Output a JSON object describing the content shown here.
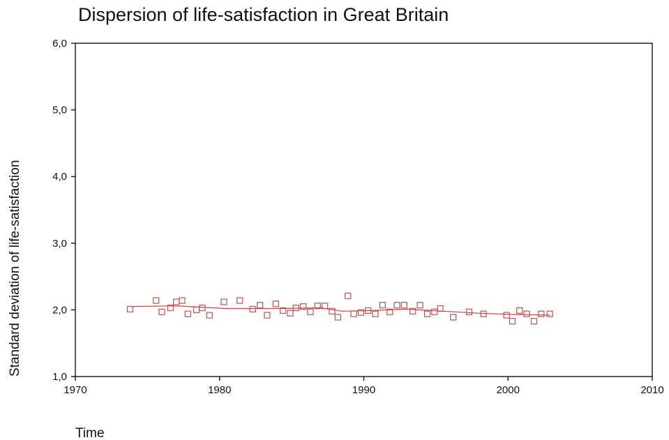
{
  "chart_data": {
    "type": "scatter",
    "title": "Dispersion of life-satisfaction in Great Britain",
    "xlabel": "Time",
    "ylabel": "Standard deviation of life-satisfaction",
    "xlim": [
      1970,
      2010
    ],
    "ylim": [
      1.0,
      6.0
    ],
    "xticks": [
      1970,
      1980,
      1990,
      2000,
      2010
    ],
    "yticks": [
      1.0,
      2.0,
      3.0,
      4.0,
      5.0,
      6.0
    ],
    "yticklabels": [
      "1,0",
      "2,0",
      "3,0",
      "4,0",
      "5,0",
      "6,0"
    ],
    "grid": false,
    "colors": {
      "points": "#c0504d",
      "trend": "#d04040",
      "axes": "#000000"
    },
    "points": [
      {
        "x": 1973.8,
        "y": 2.01
      },
      {
        "x": 1975.6,
        "y": 2.14
      },
      {
        "x": 1976.0,
        "y": 1.97
      },
      {
        "x": 1976.6,
        "y": 2.03
      },
      {
        "x": 1977.0,
        "y": 2.12
      },
      {
        "x": 1977.4,
        "y": 2.14
      },
      {
        "x": 1977.8,
        "y": 1.94
      },
      {
        "x": 1978.4,
        "y": 2.0
      },
      {
        "x": 1978.8,
        "y": 2.03
      },
      {
        "x": 1979.3,
        "y": 1.92
      },
      {
        "x": 1980.3,
        "y": 2.12
      },
      {
        "x": 1981.4,
        "y": 2.14
      },
      {
        "x": 1982.3,
        "y": 2.01
      },
      {
        "x": 1982.8,
        "y": 2.07
      },
      {
        "x": 1983.3,
        "y": 1.92
      },
      {
        "x": 1983.9,
        "y": 2.09
      },
      {
        "x": 1984.4,
        "y": 1.99
      },
      {
        "x": 1984.9,
        "y": 1.95
      },
      {
        "x": 1985.3,
        "y": 2.03
      },
      {
        "x": 1985.8,
        "y": 2.05
      },
      {
        "x": 1986.3,
        "y": 1.97
      },
      {
        "x": 1986.8,
        "y": 2.06
      },
      {
        "x": 1987.3,
        "y": 2.06
      },
      {
        "x": 1987.8,
        "y": 1.98
      },
      {
        "x": 1988.2,
        "y": 1.89
      },
      {
        "x": 1988.9,
        "y": 2.21
      },
      {
        "x": 1989.3,
        "y": 1.94
      },
      {
        "x": 1989.8,
        "y": 1.96
      },
      {
        "x": 1990.3,
        "y": 1.99
      },
      {
        "x": 1990.8,
        "y": 1.94
      },
      {
        "x": 1991.3,
        "y": 2.07
      },
      {
        "x": 1991.8,
        "y": 1.97
      },
      {
        "x": 1992.3,
        "y": 2.07
      },
      {
        "x": 1992.8,
        "y": 2.07
      },
      {
        "x": 1993.4,
        "y": 1.98
      },
      {
        "x": 1993.9,
        "y": 2.07
      },
      {
        "x": 1994.4,
        "y": 1.94
      },
      {
        "x": 1994.9,
        "y": 1.97
      },
      {
        "x": 1995.3,
        "y": 2.02
      },
      {
        "x": 1996.2,
        "y": 1.89
      },
      {
        "x": 1997.3,
        "y": 1.97
      },
      {
        "x": 1998.3,
        "y": 1.94
      },
      {
        "x": 1999.9,
        "y": 1.92
      },
      {
        "x": 2000.3,
        "y": 1.83
      },
      {
        "x": 2000.8,
        "y": 1.99
      },
      {
        "x": 2001.3,
        "y": 1.94
      },
      {
        "x": 2001.8,
        "y": 1.83
      },
      {
        "x": 2002.3,
        "y": 1.94
      },
      {
        "x": 2002.9,
        "y": 1.94
      }
    ],
    "trend_line": [
      {
        "x": 1973.8,
        "y": 2.05
      },
      {
        "x": 1977.0,
        "y": 2.06
      },
      {
        "x": 1980.5,
        "y": 2.02
      },
      {
        "x": 1984.0,
        "y": 2.02
      },
      {
        "x": 1987.0,
        "y": 2.03
      },
      {
        "x": 1988.5,
        "y": 1.98
      },
      {
        "x": 1990.5,
        "y": 1.99
      },
      {
        "x": 1993.0,
        "y": 2.01
      },
      {
        "x": 1995.5,
        "y": 1.98
      },
      {
        "x": 1998.0,
        "y": 1.95
      },
      {
        "x": 2000.5,
        "y": 1.93
      },
      {
        "x": 2002.9,
        "y": 1.92
      }
    ]
  }
}
